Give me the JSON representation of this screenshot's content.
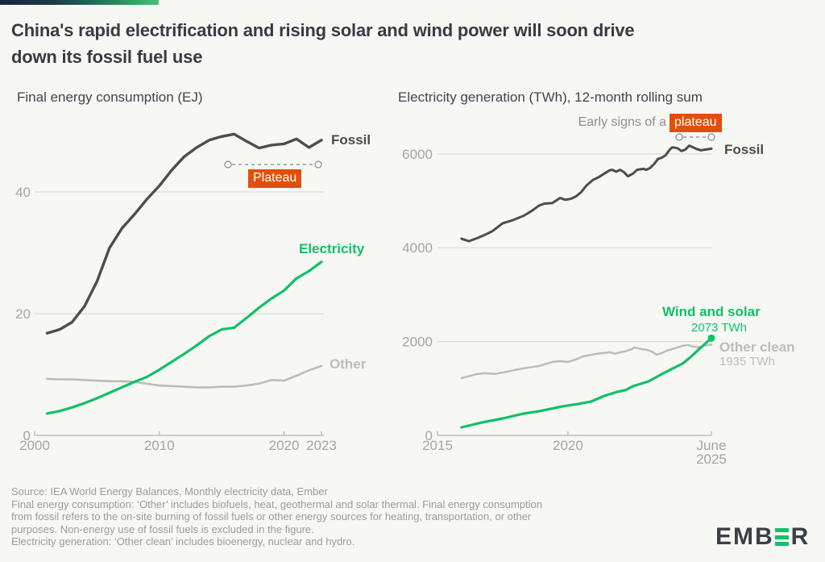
{
  "colors": {
    "green": "#10c167",
    "orange": "#e0500a",
    "dark_line": "#4c4e4c",
    "light_line": "#bcbcba",
    "grid": "#dcdcda",
    "axis": "#b3b3b1",
    "axis_text": "#a5a5a3",
    "dash": "#9a9a98",
    "background": "#f7f7f4"
  },
  "header": {
    "title_lines": [
      "China's rapid electrification and rising solar and wind power will soon drive",
      "down its fossil fuel use"
    ]
  },
  "chart_data": [
    {
      "type": "line",
      "title": "Final energy consumption (EJ)",
      "x_domain": [
        2000,
        2023
      ],
      "y_domain": [
        0,
        52
      ],
      "x_ticks": [
        {
          "v": 2000,
          "label": "2000"
        },
        {
          "v": 2010,
          "label": "2010"
        },
        {
          "v": 2020,
          "label": "2020"
        },
        {
          "v": 2023,
          "label": "2023"
        }
      ],
      "y_ticks": [
        {
          "v": 0,
          "label": "0"
        },
        {
          "v": 20,
          "label": "20"
        },
        {
          "v": 40,
          "label": "40"
        }
      ],
      "grid": "horizontal only",
      "legend": "direct line labels at right",
      "annotation": {
        "label": "Plateau",
        "span_years": [
          2015.3,
          2022.6
        ]
      },
      "series": [
        {
          "name": "Fossil",
          "color": "#4c4e4c",
          "x": [
            2001,
            2002,
            2003,
            2004,
            2005,
            2006,
            2007,
            2008,
            2009,
            2010,
            2011,
            2012,
            2013,
            2014,
            2015,
            2016,
            2017,
            2018,
            2019,
            2020,
            2021,
            2022,
            2023
          ],
          "values": [
            16.8,
            17.4,
            18.6,
            21.2,
            25.3,
            30.8,
            34.0,
            36.3,
            38.8,
            41.0,
            43.6,
            45.8,
            47.3,
            48.5,
            49.1,
            49.5,
            48.3,
            47.2,
            47.7,
            47.9,
            48.7,
            47.3,
            48.5
          ]
        },
        {
          "name": "Electricity",
          "color": "#10c167",
          "x": [
            2001,
            2002,
            2003,
            2004,
            2005,
            2006,
            2007,
            2008,
            2009,
            2010,
            2011,
            2012,
            2013,
            2014,
            2015,
            2016,
            2017,
            2018,
            2019,
            2020,
            2021,
            2022,
            2023
          ],
          "values": [
            3.6,
            4.0,
            4.6,
            5.3,
            6.1,
            7.0,
            7.9,
            8.8,
            9.6,
            10.8,
            12.1,
            13.4,
            14.8,
            16.3,
            17.4,
            17.7,
            19.3,
            21.0,
            22.5,
            23.8,
            25.8,
            27.0,
            28.5
          ]
        },
        {
          "name": "Other",
          "color": "#bcbcba",
          "x": [
            2001,
            2002,
            2003,
            2004,
            2005,
            2006,
            2007,
            2008,
            2009,
            2010,
            2011,
            2012,
            2013,
            2014,
            2015,
            2016,
            2017,
            2018,
            2019,
            2020,
            2021,
            2022,
            2023
          ],
          "values": [
            9.3,
            9.2,
            9.2,
            9.1,
            9.0,
            8.9,
            8.9,
            8.8,
            8.5,
            8.2,
            8.1,
            8.0,
            7.9,
            7.9,
            8.0,
            8.0,
            8.2,
            8.5,
            9.1,
            9.0,
            9.8,
            10.7,
            11.4
          ]
        }
      ]
    },
    {
      "type": "line",
      "title": "Electricity generation (TWh), 12-month rolling sum",
      "x_domain": [
        2015,
        2025.5
      ],
      "y_domain": [
        0,
        6600
      ],
      "x_ticks": [
        {
          "v": 2015,
          "label": "2015"
        },
        {
          "v": 2020,
          "label": "2020"
        },
        {
          "v": 2025.5,
          "label": "June\n2025"
        }
      ],
      "y_ticks": [
        {
          "v": 0,
          "label": "0"
        },
        {
          "v": 2000,
          "label": "2000"
        },
        {
          "v": 4000,
          "label": "4000"
        },
        {
          "v": 6000,
          "label": "6000"
        }
      ],
      "grid": "horizontal only",
      "legend": "direct line labels at right",
      "annotation": {
        "prefix": "Early signs of a",
        "label": "plateau",
        "span_years": [
          2024.3,
          2025.5
        ]
      },
      "series": [
        {
          "name": "Fossil",
          "color": "#4c4e4c",
          "x": [
            2015.92,
            2016.2,
            2016.5,
            2016.8,
            2017.1,
            2017.5,
            2017.9,
            2018.3,
            2018.6,
            2018.9,
            2019.1,
            2019.4,
            2019.7,
            2019.9,
            2020.1,
            2020.3,
            2020.5,
            2020.7,
            2020.95,
            2021.2,
            2021.4,
            2021.6,
            2021.7,
            2021.85,
            2022.0,
            2022.15,
            2022.3,
            2022.5,
            2022.65,
            2022.9,
            2023.0,
            2023.15,
            2023.3,
            2023.45,
            2023.6,
            2023.75,
            2023.9,
            2024.0,
            2024.2,
            2024.35,
            2024.5,
            2024.65,
            2024.8,
            2024.95,
            2025.1,
            2025.25,
            2025.5
          ],
          "values": [
            4190,
            4140,
            4200,
            4270,
            4350,
            4520,
            4590,
            4680,
            4780,
            4900,
            4940,
            4950,
            5060,
            5020,
            5040,
            5090,
            5180,
            5320,
            5440,
            5510,
            5580,
            5650,
            5660,
            5620,
            5660,
            5610,
            5520,
            5580,
            5660,
            5680,
            5660,
            5700,
            5780,
            5890,
            5920,
            5970,
            6090,
            6140,
            6120,
            6060,
            6090,
            6175,
            6140,
            6100,
            6075,
            6090,
            6110
          ]
        },
        {
          "name": "Wind and solar",
          "color": "#10c167",
          "end_label": "2073 TWh",
          "end_value": 2073,
          "end_dot": true,
          "x": [
            2015.92,
            2016.7,
            2017.5,
            2018.3,
            2018.9,
            2019.8,
            2020.4,
            2020.9,
            2021.4,
            2021.9,
            2022.2,
            2022.5,
            2023.1,
            2023.6,
            2023.9,
            2024.4,
            2024.7,
            2025.0,
            2025.5
          ],
          "values": [
            172,
            275,
            361,
            465,
            516,
            620,
            671,
            723,
            843,
            929,
            964,
            1050,
            1153,
            1308,
            1394,
            1532,
            1669,
            1824,
            2073
          ]
        },
        {
          "name": "Other clean",
          "color": "#bcbcba",
          "end_label": "1935 TWh",
          "end_value": 1935,
          "x": [
            2015.92,
            2016.5,
            2016.8,
            2017.2,
            2017.7,
            2018.1,
            2018.5,
            2018.9,
            2019.4,
            2019.7,
            2020.0,
            2020.3,
            2020.6,
            2021.1,
            2021.6,
            2021.8,
            2022.0,
            2022.2,
            2022.45,
            2022.55,
            2022.8,
            2023.0,
            2023.2,
            2023.4,
            2023.6,
            2023.8,
            2024.0,
            2024.4,
            2024.6,
            2024.8,
            2025.0,
            2025.2,
            2025.5
          ],
          "values": [
            1222,
            1308,
            1325,
            1310,
            1360,
            1410,
            1446,
            1480,
            1566,
            1583,
            1566,
            1617,
            1686,
            1738,
            1772,
            1740,
            1772,
            1790,
            1841,
            1876,
            1841,
            1824,
            1790,
            1721,
            1755,
            1807,
            1841,
            1910,
            1927,
            1893,
            1876,
            1910,
            1935
          ]
        }
      ]
    }
  ],
  "footer": {
    "lines": [
      "Source: IEA World Energy Balances, Monthly electricity data, Ember",
      "Final energy consumption: ‘Other’ includes biofuels, heat, geothermal and solar thermal. Final energy consumption",
      "from fossil refers to the on-site burning of fossil fuels or other energy sources for heating, transportation, or other",
      "purposes. Non-energy use of fossil fuels is excluded in the figure.",
      "Electricity generation: ‘Other clean’ includes bioenergy, nuclear and hydro."
    ]
  },
  "logo": {
    "name": "Ember",
    "text_left": "EMB",
    "text_right": "R"
  }
}
